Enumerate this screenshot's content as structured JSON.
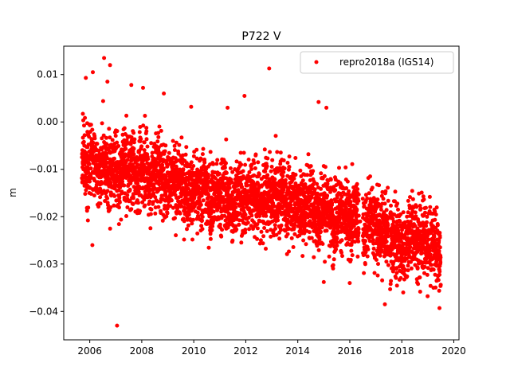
{
  "chart_data": {
    "type": "scatter",
    "title": "P722 V",
    "xlabel": "",
    "ylabel": "m",
    "xlim": [
      2005.0,
      2020.2
    ],
    "ylim": [
      -0.046,
      0.016
    ],
    "xticks": [
      2006,
      2008,
      2010,
      2012,
      2014,
      2016,
      2018,
      2020
    ],
    "xtick_labels": [
      "2006",
      "2008",
      "2010",
      "2012",
      "2014",
      "2016",
      "2018",
      "2020"
    ],
    "yticks": [
      0.01,
      0.0,
      -0.01,
      -0.02,
      -0.03,
      -0.04
    ],
    "ytick_labels": [
      "0.01",
      "0.00",
      "−0.01",
      "−0.02",
      "−0.03",
      "−0.04"
    ],
    "grid": false,
    "legend_position": "top-right",
    "colors": {
      "series": "#ff0000",
      "axes": "#000000",
      "background": "#ffffff"
    },
    "series": [
      {
        "name": "repro2018a (IGS14)",
        "marker": "circle",
        "x": [
          2005.75,
          2005.95,
          2006.1,
          2006.25,
          2006.4,
          2006.55,
          2006.7,
          2006.85,
          2007.0,
          2007.15,
          2007.3,
          2007.5,
          2007.65,
          2007.8,
          2008.0,
          2008.15,
          2008.3,
          2008.5,
          2008.65,
          2008.8,
          2009.0,
          2009.2,
          2009.4,
          2009.6,
          2009.8,
          2010.0,
          2010.2,
          2010.4,
          2010.6,
          2010.8,
          2011.0,
          2011.2,
          2011.4,
          2011.6,
          2011.8,
          2012.0,
          2012.2,
          2012.4,
          2012.6,
          2012.8,
          2013.0,
          2013.2,
          2013.4,
          2013.6,
          2013.8,
          2014.0,
          2014.2,
          2014.4,
          2014.6,
          2014.8,
          2015.0,
          2015.2,
          2015.4,
          2015.6,
          2015.8,
          2016.0,
          2016.2,
          2016.4,
          2016.6,
          2016.8,
          2017.0,
          2017.2,
          2017.4,
          2017.6,
          2017.8,
          2018.0,
          2018.2,
          2018.4,
          2018.6,
          2018.8,
          2019.0,
          2019.2,
          2019.4
        ],
        "y": [
          -0.008,
          -0.01,
          -0.006,
          -0.009,
          -0.011,
          -0.007,
          -0.012,
          -0.01,
          -0.009,
          -0.013,
          -0.008,
          -0.011,
          -0.009,
          -0.012,
          -0.01,
          -0.008,
          -0.013,
          -0.011,
          -0.009,
          -0.012,
          -0.013,
          -0.011,
          -0.014,
          -0.012,
          -0.015,
          -0.014,
          -0.016,
          -0.013,
          -0.017,
          -0.015,
          -0.016,
          -0.014,
          -0.018,
          -0.016,
          -0.015,
          -0.017,
          -0.014,
          -0.016,
          -0.018,
          -0.015,
          -0.017,
          -0.016,
          -0.014,
          -0.018,
          -0.016,
          -0.017,
          -0.019,
          -0.016,
          -0.018,
          -0.02,
          -0.017,
          -0.019,
          -0.021,
          -0.018,
          -0.02,
          -0.022,
          -0.019,
          -0.021,
          -0.023,
          -0.02,
          -0.022,
          -0.024,
          -0.021,
          -0.026,
          -0.024,
          -0.027,
          -0.025,
          -0.023,
          -0.026,
          -0.024,
          -0.027,
          -0.025,
          -0.028
        ],
        "trend": {
          "start": [
            2005.7,
            -0.008
          ],
          "end": [
            2019.5,
            -0.027
          ],
          "scatter_sd": 0.0055
        },
        "outliers": [
          {
            "x": 2006.55,
            "y": 0.0135
          },
          {
            "x": 2006.78,
            "y": 0.012
          },
          {
            "x": 2006.12,
            "y": 0.0105
          },
          {
            "x": 2005.85,
            "y": 0.0093
          },
          {
            "x": 2006.68,
            "y": 0.0085
          },
          {
            "x": 2007.6,
            "y": 0.0078
          },
          {
            "x": 2008.05,
            "y": 0.0072
          },
          {
            "x": 2008.85,
            "y": 0.006
          },
          {
            "x": 2012.9,
            "y": 0.0113
          },
          {
            "x": 2011.95,
            "y": 0.0055
          },
          {
            "x": 2011.3,
            "y": 0.003
          },
          {
            "x": 2014.8,
            "y": 0.0042
          },
          {
            "x": 2015.1,
            "y": 0.003
          },
          {
            "x": 2009.9,
            "y": 0.0032
          },
          {
            "x": 2006.1,
            "y": -0.026
          },
          {
            "x": 2007.05,
            "y": -0.043
          },
          {
            "x": 2017.35,
            "y": -0.0385
          },
          {
            "x": 2019.45,
            "y": -0.0393
          },
          {
            "x": 2015.0,
            "y": -0.0338
          },
          {
            "x": 2016.0,
            "y": -0.034
          }
        ]
      }
    ]
  }
}
